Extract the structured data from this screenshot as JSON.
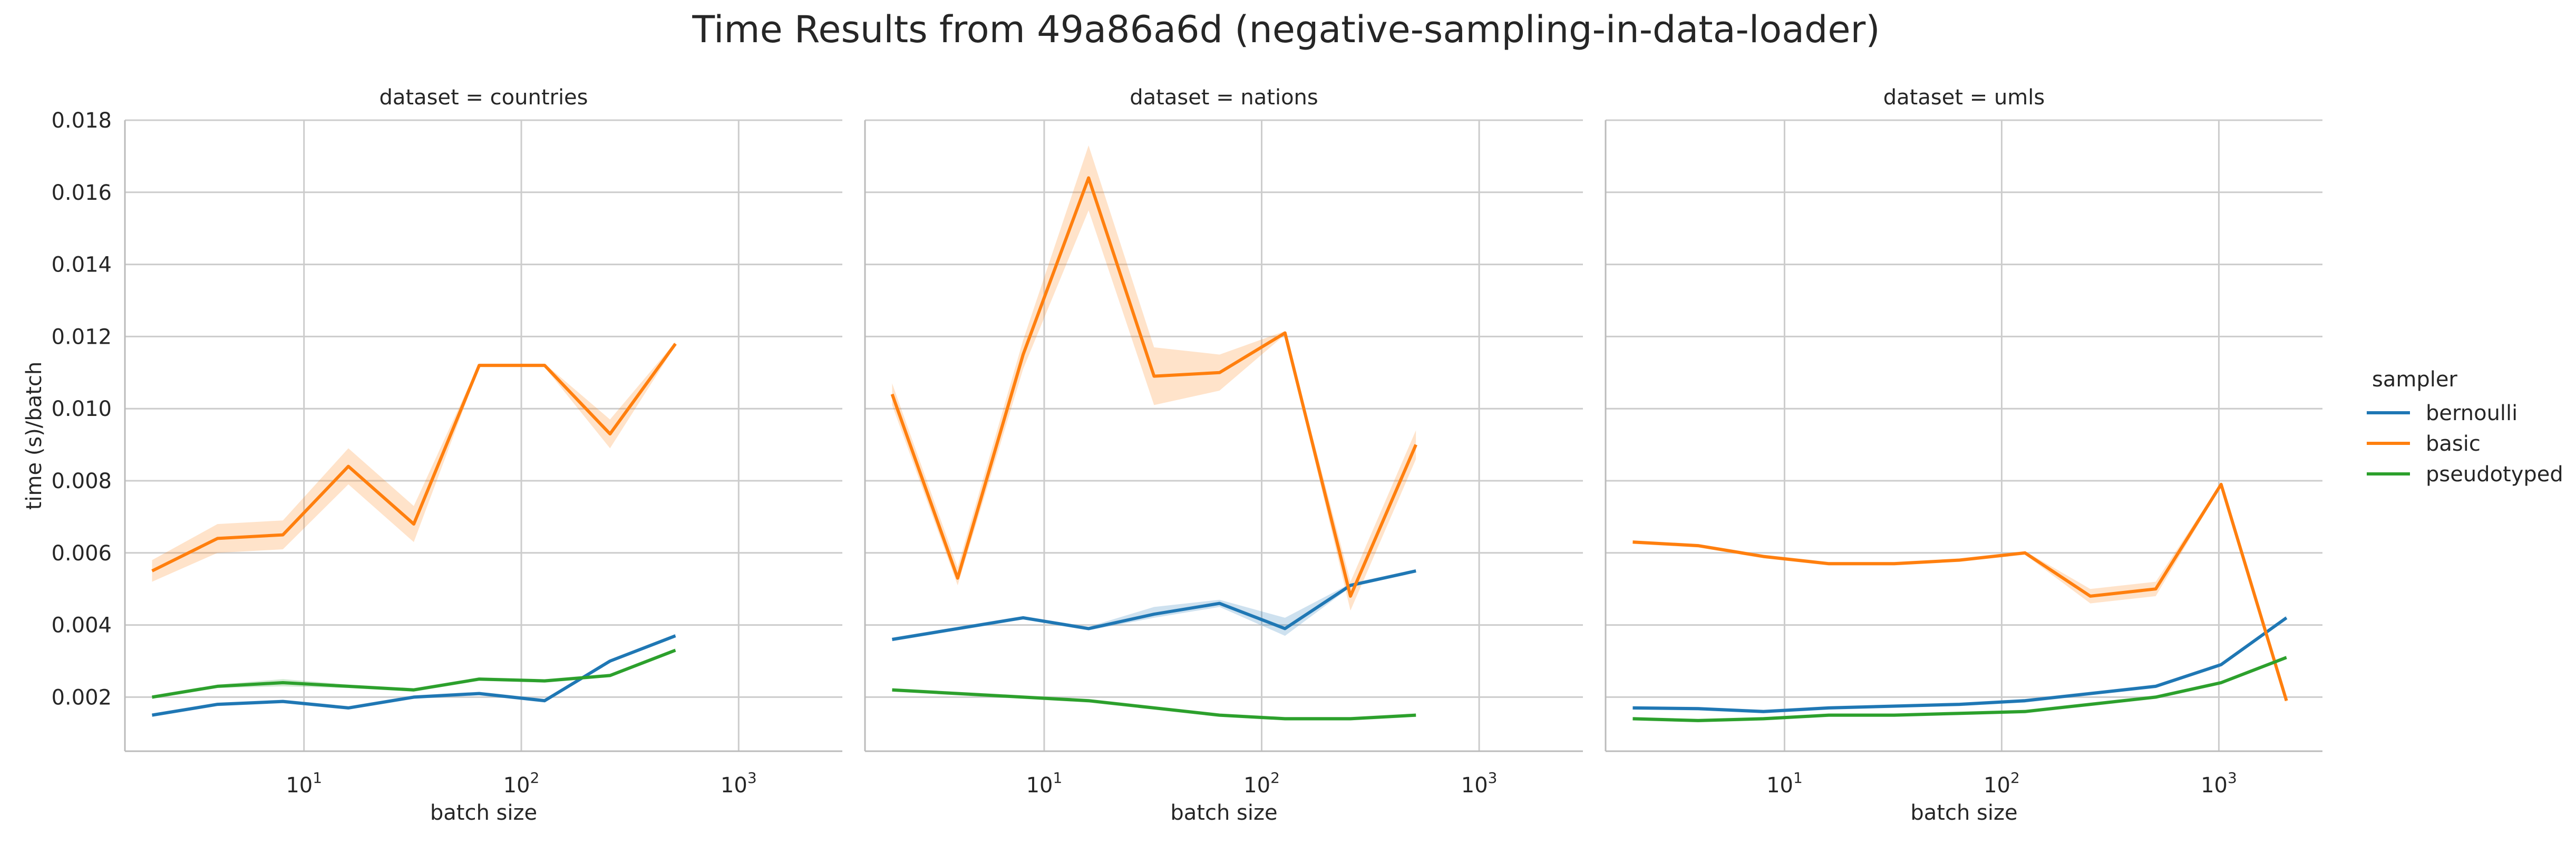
{
  "title": "Time Results from 49a86a6d (negative-sampling-in-data-loader)",
  "colors": {
    "bernoulli": "#1f77b4",
    "basic": "#ff7f0e",
    "pseudotyped": "#2ca02c",
    "grid": "#cccccc",
    "axis": "#bbbbbb",
    "text": "#262626"
  },
  "legend": {
    "title": "sampler",
    "placement": "right",
    "entries": [
      "bernoulli",
      "basic",
      "pseudotyped"
    ]
  },
  "chart_data": [
    {
      "type": "line",
      "title": "dataset = countries",
      "xlabel": "batch size",
      "ylabel": "time (s)/batch",
      "xscale": "log",
      "xlim": [
        1.5,
        3000
      ],
      "ylim": [
        0.0005,
        0.018
      ],
      "xticks": [
        10,
        100,
        1000
      ],
      "xtick_labels": [
        [
          "10",
          "1"
        ],
        [
          "10",
          "2"
        ],
        [
          "10",
          "3"
        ]
      ],
      "yticks": [
        0.002,
        0.004,
        0.006,
        0.008,
        0.01,
        0.012,
        0.014,
        0.016,
        0.018
      ],
      "ytick_labels": [
        "0.002",
        "0.004",
        "0.006",
        "0.008",
        "0.010",
        "0.012",
        "0.014",
        "0.016",
        "0.018"
      ],
      "grid": true,
      "series": [
        {
          "name": "bernoulli",
          "x": [
            2,
            4,
            8,
            16,
            32,
            64,
            128,
            256,
            512
          ],
          "y": [
            0.0015,
            0.0018,
            0.00188,
            0.0017,
            0.002,
            0.0021,
            0.0019,
            0.003,
            0.0037
          ],
          "lower": [
            0.00145,
            0.00175,
            0.00183,
            0.00165,
            0.00195,
            0.00205,
            0.00185,
            0.00295,
            0.00365
          ],
          "upper": [
            0.00155,
            0.00185,
            0.00193,
            0.00175,
            0.00205,
            0.00215,
            0.00195,
            0.00305,
            0.00375
          ]
        },
        {
          "name": "basic",
          "x": [
            2,
            4,
            8,
            16,
            32,
            64,
            128,
            256,
            512
          ],
          "y": [
            0.0055,
            0.0064,
            0.0065,
            0.0084,
            0.0068,
            0.0112,
            0.0112,
            0.0093,
            0.0118
          ],
          "lower": [
            0.0052,
            0.006,
            0.0061,
            0.0079,
            0.0063,
            0.01115,
            0.01115,
            0.0089,
            0.01175
          ],
          "upper": [
            0.0058,
            0.0068,
            0.0069,
            0.0089,
            0.0073,
            0.01125,
            0.01125,
            0.0097,
            0.01185
          ]
        },
        {
          "name": "pseudotyped",
          "x": [
            2,
            4,
            8,
            16,
            32,
            64,
            128,
            256,
            512
          ],
          "y": [
            0.002,
            0.0023,
            0.0024,
            0.0023,
            0.0022,
            0.0025,
            0.00245,
            0.0026,
            0.0033
          ],
          "lower": [
            0.00195,
            0.00225,
            0.0023,
            0.00225,
            0.00215,
            0.00245,
            0.0024,
            0.00255,
            0.00325
          ],
          "upper": [
            0.00205,
            0.00235,
            0.0025,
            0.00235,
            0.00225,
            0.00255,
            0.0025,
            0.00265,
            0.00335
          ]
        }
      ]
    },
    {
      "type": "line",
      "title": "dataset = nations",
      "xlabel": "batch size",
      "ylabel": "",
      "xscale": "log",
      "xlim": [
        1.5,
        3000
      ],
      "ylim": [
        0.0005,
        0.018
      ],
      "xticks": [
        10,
        100,
        1000
      ],
      "xtick_labels": [
        [
          "10",
          "1"
        ],
        [
          "10",
          "2"
        ],
        [
          "10",
          "3"
        ]
      ],
      "yticks": [],
      "ytick_labels": [],
      "grid": true,
      "series": [
        {
          "name": "bernoulli",
          "x": [
            2,
            4,
            8,
            16,
            32,
            64,
            128,
            256,
            512
          ],
          "y": [
            0.0036,
            0.0039,
            0.0042,
            0.0039,
            0.0043,
            0.0046,
            0.0039,
            0.0051,
            0.0055
          ],
          "lower": [
            0.00355,
            0.00385,
            0.00415,
            0.00385,
            0.0042,
            0.0045,
            0.0037,
            0.00505,
            0.00545
          ],
          "upper": [
            0.00365,
            0.00395,
            0.00425,
            0.00395,
            0.0045,
            0.0047,
            0.0042,
            0.00515,
            0.00555
          ]
        },
        {
          "name": "basic",
          "x": [
            2,
            4,
            8,
            16,
            32,
            64,
            128,
            256,
            512
          ],
          "y": [
            0.0104,
            0.0053,
            0.0115,
            0.0164,
            0.0109,
            0.011,
            0.0121,
            0.0048,
            0.009
          ],
          "lower": [
            0.0101,
            0.0051,
            0.0111,
            0.0155,
            0.0101,
            0.0105,
            0.01205,
            0.0044,
            0.0086
          ],
          "upper": [
            0.0107,
            0.0056,
            0.0119,
            0.0173,
            0.0117,
            0.0115,
            0.01215,
            0.0052,
            0.0094
          ]
        },
        {
          "name": "pseudotyped",
          "x": [
            2,
            4,
            8,
            16,
            32,
            64,
            128,
            256,
            512
          ],
          "y": [
            0.0022,
            0.0021,
            0.002,
            0.0019,
            0.0017,
            0.0015,
            0.0014,
            0.0014,
            0.0015
          ],
          "lower": [
            0.00215,
            0.00205,
            0.00195,
            0.00185,
            0.00165,
            0.00145,
            0.00135,
            0.00135,
            0.00145
          ],
          "upper": [
            0.00225,
            0.00215,
            0.00205,
            0.00195,
            0.00175,
            0.00155,
            0.00145,
            0.00145,
            0.00155
          ]
        }
      ]
    },
    {
      "type": "line",
      "title": "dataset = umls",
      "xlabel": "batch size",
      "ylabel": "",
      "xscale": "log",
      "xlim": [
        1.5,
        3000
      ],
      "ylim": [
        0.0005,
        0.018
      ],
      "xticks": [
        10,
        100,
        1000
      ],
      "xtick_labels": [
        [
          "10",
          "1"
        ],
        [
          "10",
          "2"
        ],
        [
          "10",
          "3"
        ]
      ],
      "yticks": [],
      "ytick_labels": [],
      "grid": true,
      "series": [
        {
          "name": "bernoulli",
          "x": [
            2,
            4,
            8,
            16,
            32,
            64,
            128,
            256,
            512,
            1024,
            2048
          ],
          "y": [
            0.0017,
            0.00168,
            0.0016,
            0.0017,
            0.00175,
            0.0018,
            0.0019,
            0.0021,
            0.0023,
            0.0029,
            0.0042
          ],
          "lower": [
            0.00165,
            0.00163,
            0.00155,
            0.00165,
            0.0017,
            0.00175,
            0.00185,
            0.00205,
            0.00225,
            0.00285,
            0.00415
          ],
          "upper": [
            0.00175,
            0.00173,
            0.00165,
            0.00175,
            0.0018,
            0.00185,
            0.00195,
            0.00215,
            0.00235,
            0.00295,
            0.00425
          ]
        },
        {
          "name": "basic",
          "x": [
            2,
            4,
            8,
            16,
            32,
            64,
            128,
            256,
            512,
            1024,
            2048
          ],
          "y": [
            0.0063,
            0.0062,
            0.0059,
            0.0057,
            0.0057,
            0.0058,
            0.006,
            0.0048,
            0.005,
            0.0079,
            0.0019
          ],
          "lower": [
            0.00625,
            0.00615,
            0.00585,
            0.00565,
            0.00565,
            0.00575,
            0.00595,
            0.0046,
            0.0048,
            0.00785,
            0.00185
          ],
          "upper": [
            0.00635,
            0.00625,
            0.00595,
            0.00575,
            0.00575,
            0.00585,
            0.00605,
            0.005,
            0.0052,
            0.00795,
            0.00195
          ]
        },
        {
          "name": "pseudotyped",
          "x": [
            2,
            4,
            8,
            16,
            32,
            64,
            128,
            256,
            512,
            1024,
            2048
          ],
          "y": [
            0.0014,
            0.00135,
            0.0014,
            0.0015,
            0.0015,
            0.00155,
            0.0016,
            0.0018,
            0.002,
            0.0024,
            0.0031
          ],
          "lower": [
            0.00135,
            0.0013,
            0.00135,
            0.00145,
            0.00145,
            0.0015,
            0.00155,
            0.00175,
            0.00195,
            0.00235,
            0.00305
          ],
          "upper": [
            0.00145,
            0.0014,
            0.00145,
            0.00155,
            0.00155,
            0.0016,
            0.00165,
            0.00185,
            0.00205,
            0.00245,
            0.00315
          ]
        }
      ]
    }
  ]
}
